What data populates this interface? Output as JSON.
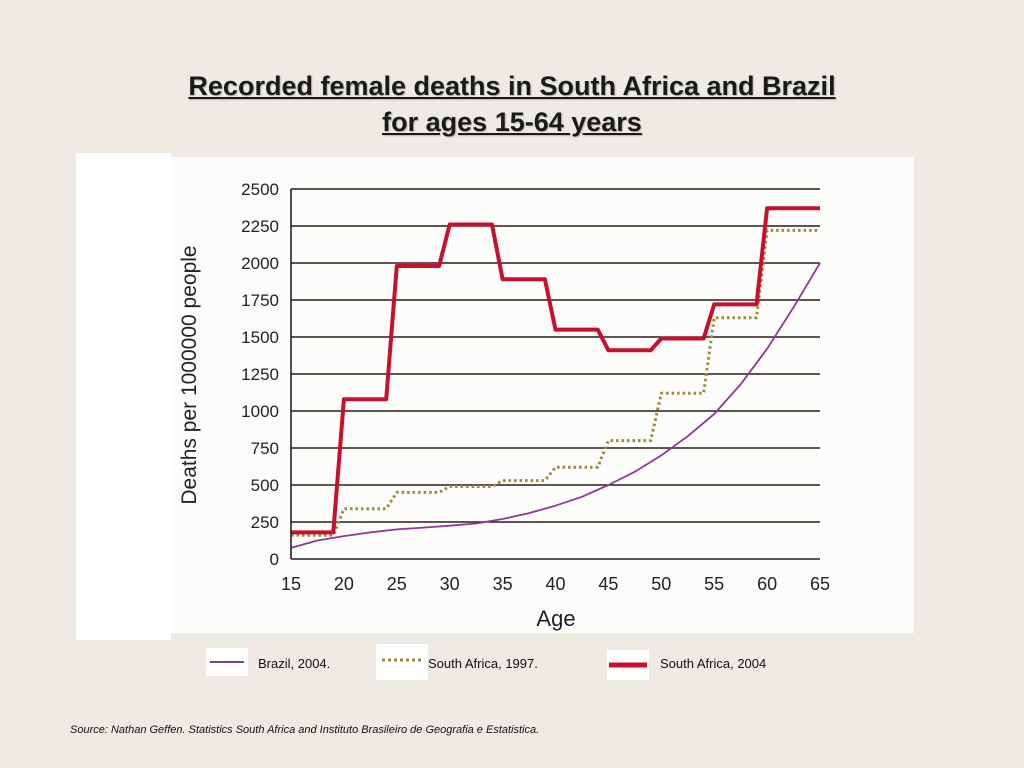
{
  "title": {
    "line1": "Recorded female deaths in South Africa and Brazil",
    "line2": "for ages 15-64 years"
  },
  "chart_data": {
    "type": "line",
    "xlabel": "Age",
    "ylabel": "Deaths per 1000000 people",
    "xlim": [
      15,
      65
    ],
    "ylim": [
      0,
      2500
    ],
    "x_ticks": [
      15,
      20,
      25,
      30,
      35,
      40,
      45,
      50,
      55,
      60,
      65
    ],
    "y_ticks": [
      0,
      250,
      500,
      750,
      1000,
      1250,
      1500,
      1750,
      2000,
      2250,
      2500
    ],
    "grid": "horizontal",
    "series": [
      {
        "name": "Brazil, 2004.",
        "style": "thin-line",
        "color": "#8b3c8f",
        "x": [
          15,
          17.5,
          20,
          22.5,
          25,
          27.5,
          30,
          32.5,
          35,
          37.5,
          40,
          42.5,
          45,
          47.5,
          50,
          52.5,
          55,
          57.5,
          60,
          62.5,
          65
        ],
        "y": [
          75,
          125,
          155,
          180,
          200,
          212,
          225,
          240,
          270,
          310,
          360,
          420,
          500,
          590,
          700,
          830,
          980,
          1180,
          1420,
          1700,
          2000
        ]
      },
      {
        "name": "South Africa, 1997.",
        "style": "dotted-step",
        "color": "#9a8a3a",
        "x": [
          15,
          19,
          20,
          24,
          25,
          29,
          30,
          34,
          35,
          39,
          40,
          44,
          45,
          49,
          50,
          54,
          55,
          59,
          60,
          65
        ],
        "y": [
          160,
          160,
          340,
          340,
          450,
          450,
          490,
          490,
          530,
          530,
          620,
          620,
          800,
          800,
          1120,
          1120,
          1630,
          1630,
          2220,
          2220
        ]
      },
      {
        "name": "South Africa, 2004",
        "style": "thick-step",
        "color": "#c8102e",
        "x": [
          15,
          19,
          20,
          24,
          25,
          29,
          30,
          34,
          35,
          39,
          40,
          44,
          45,
          49,
          50,
          54,
          55,
          59,
          60,
          65
        ],
        "y": [
          180,
          180,
          1080,
          1080,
          1980,
          1980,
          2260,
          2260,
          1890,
          1890,
          1550,
          1550,
          1410,
          1410,
          1490,
          1490,
          1720,
          1720,
          2370,
          2370
        ]
      }
    ]
  },
  "legend": {
    "items": [
      {
        "label": "Brazil, 2004."
      },
      {
        "label": "South Africa, 1997."
      },
      {
        "label": "South Africa, 2004"
      }
    ]
  },
  "source": "Source: Nathan Geffen. Statistics South Africa and Instituto Brasileiro de Geografia e Estatistica."
}
